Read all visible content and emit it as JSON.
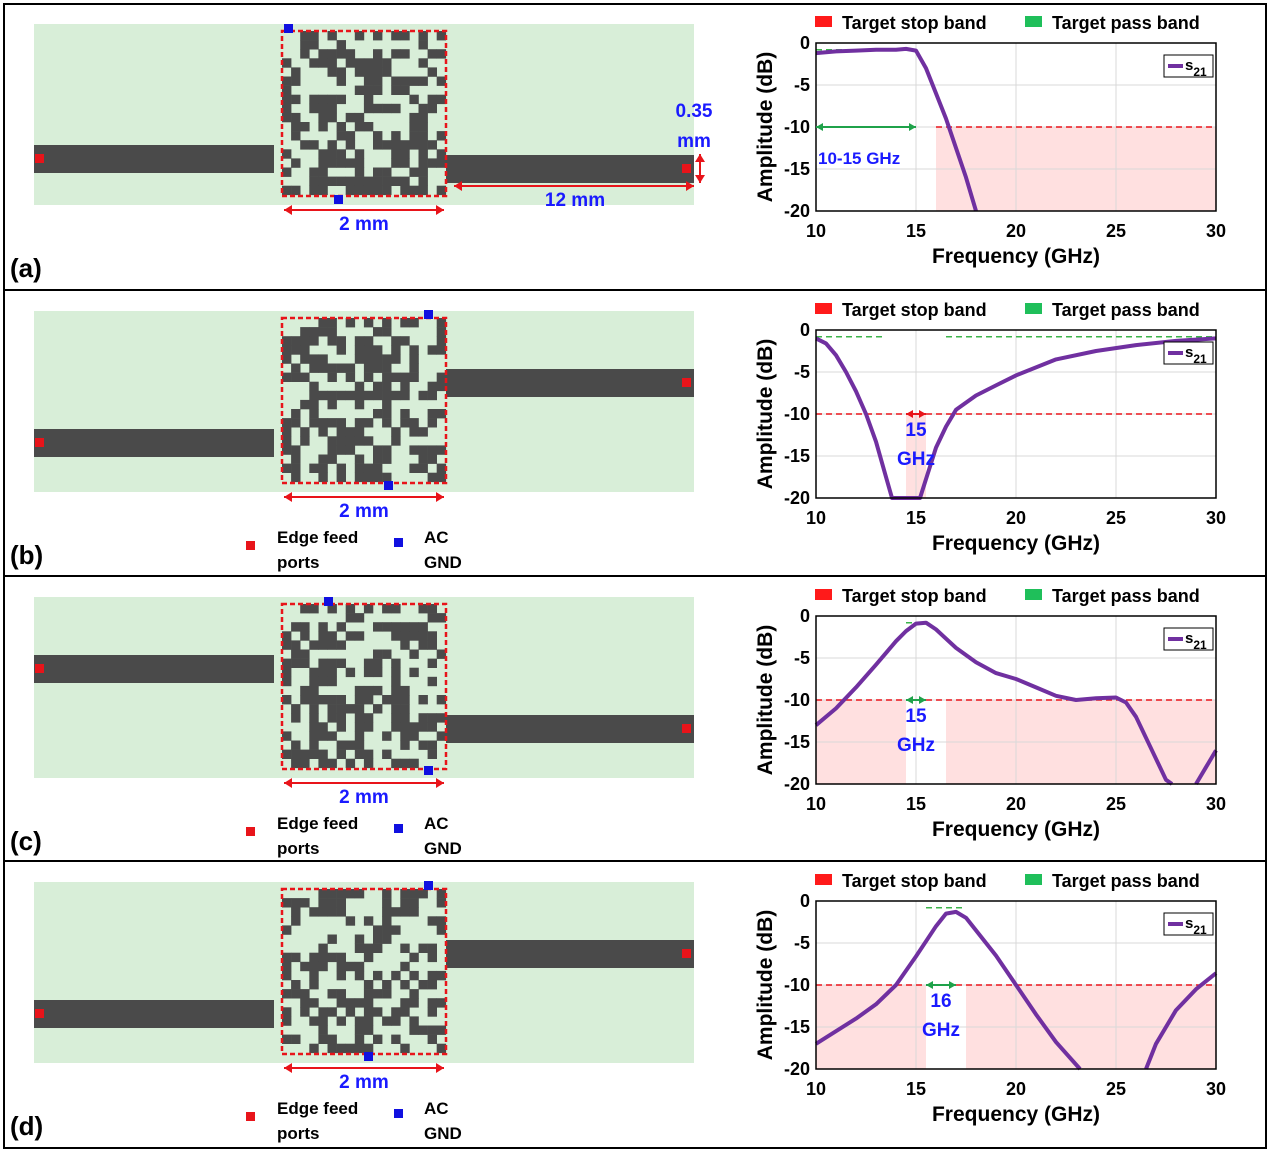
{
  "legend": {
    "stop_label": "Target stop band",
    "pass_label": "Target pass band",
    "stop_color": "#ff1a1a",
    "pass_color": "#1fbf5a"
  },
  "ports_legend": {
    "feed_line1": "Edge feed",
    "feed_line2": "ports",
    "gnd_line1": "AC",
    "gnd_line2": "GND",
    "feed_color": "#e8141a",
    "gnd_color": "#1010e0"
  },
  "colors": {
    "substrate": "#d8eed8",
    "metal": "#4a4a4a",
    "dim": "#e8141a",
    "annotation": "#1a1aff",
    "curve": "#7030a0",
    "stop_fill": "#ffe0e0",
    "pass_line": "#3cb44b"
  },
  "panels": [
    {
      "label": "(a)",
      "dim_2mm": "2 mm",
      "dim_12mm": "12 mm",
      "dim_h1": "0.35",
      "dim_h2": "mm",
      "annot1": "10-15 GHz",
      "annot2": "",
      "show_port_legend": false,
      "left_line": "center",
      "right_line": "center"
    },
    {
      "label": "(b)",
      "dim_2mm": "2 mm",
      "annot1": "15",
      "annot2": "GHz",
      "show_port_legend": true,
      "left_line": "low",
      "right_line": "high"
    },
    {
      "label": "(c)",
      "dim_2mm": "2 mm",
      "annot1": "15",
      "annot2": "GHz",
      "show_port_legend": true,
      "left_line": "high",
      "right_line": "low"
    },
    {
      "label": "(d)",
      "dim_2mm": "2 mm",
      "annot1": "16",
      "annot2": "GHz",
      "show_port_legend": true,
      "left_line": "low",
      "right_line": "high"
    }
  ],
  "chart_data": [
    {
      "type": "line",
      "xlabel": "Frequency (GHz)",
      "ylabel": "Amplitude (dB)",
      "xlim": [
        10,
        30
      ],
      "ylim": [
        -20,
        0
      ],
      "xticks": [
        10,
        15,
        20,
        25,
        30
      ],
      "yticks": [
        0,
        -5,
        -10,
        -15,
        -20
      ],
      "legend_position": "top-right",
      "grid": true,
      "series": [
        {
          "name": "s21",
          "x": [
            10,
            11,
            12,
            13,
            14,
            14.5,
            15,
            15.5,
            16,
            16.5,
            17,
            17.5,
            18
          ],
          "y": [
            -1.2,
            -1,
            -0.9,
            -0.8,
            -0.8,
            -0.7,
            -0.9,
            -3,
            -6,
            -9,
            -12.5,
            -16,
            -20
          ]
        }
      ],
      "stop_bands": [
        [
          16,
          30
        ]
      ],
      "stop_level": -10,
      "pass_bands": [
        [
          10,
          15
        ]
      ],
      "pass_level": -0.8,
      "arrow": [
        10,
        15
      ]
    },
    {
      "type": "line",
      "xlabel": "Frequency (GHz)",
      "ylabel": "Amplitude (dB)",
      "xlim": [
        10,
        30
      ],
      "ylim": [
        -20,
        0
      ],
      "xticks": [
        10,
        15,
        20,
        25,
        30
      ],
      "yticks": [
        0,
        -5,
        -10,
        -15,
        -20
      ],
      "legend_position": "top-right",
      "grid": true,
      "series": [
        {
          "name": "s21",
          "x": [
            10,
            10.5,
            11,
            11.5,
            12,
            12.5,
            13,
            13.5,
            13.8,
            15.2,
            15.6,
            16,
            16.5,
            17,
            18,
            19,
            20,
            22,
            24,
            26,
            28,
            30
          ],
          "y": [
            -1,
            -1.6,
            -3,
            -5,
            -7.3,
            -10,
            -13.3,
            -17.5,
            -20,
            -20,
            -17,
            -14,
            -11.5,
            -9.5,
            -7.8,
            -6.6,
            -5.4,
            -3.5,
            -2.5,
            -1.8,
            -1.3,
            -1
          ]
        }
      ],
      "stop_bands": [
        [
          14.5,
          15.5
        ]
      ],
      "stop_level": -10,
      "pass_bands": [
        [
          10,
          13.5
        ],
        [
          16.5,
          30
        ]
      ],
      "pass_level": -0.8,
      "arrow": [
        14.5,
        15.5
      ]
    },
    {
      "type": "line",
      "xlabel": "Frequency (GHz)",
      "ylabel": "Amplitude (dB)",
      "xlim": [
        10,
        30
      ],
      "ylim": [
        -20,
        0
      ],
      "xticks": [
        10,
        15,
        20,
        25,
        30
      ],
      "yticks": [
        0,
        -5,
        -10,
        -15,
        -20
      ],
      "legend_position": "top-right",
      "grid": true,
      "series": [
        {
          "name": "s21",
          "x": [
            10,
            11,
            12,
            13,
            14,
            14.5,
            15,
            15.5,
            16,
            17,
            18,
            19,
            20,
            21,
            22,
            23,
            24,
            25,
            25.5,
            26,
            26.5,
            27,
            27.5,
            27.8
          ],
          "y": [
            -13,
            -11,
            -8.5,
            -5.8,
            -3,
            -1.8,
            -0.9,
            -0.8,
            -1.6,
            -3.8,
            -5.5,
            -6.8,
            -7.5,
            -8.5,
            -9.5,
            -10,
            -9.8,
            -9.7,
            -10.3,
            -12,
            -14.5,
            -17,
            -19.5,
            -20
          ]
        },
        {
          "name": "",
          "x": [
            29,
            29.5,
            30
          ],
          "y": [
            -20,
            -18,
            -16
          ]
        }
      ],
      "stop_bands": [
        [
          10,
          14.5
        ],
        [
          16.5,
          30
        ]
      ],
      "stop_level": -10,
      "pass_bands": [
        [
          14.5,
          15.5
        ]
      ],
      "pass_level": -0.8,
      "arrow": [
        14.5,
        15.5
      ]
    },
    {
      "type": "line",
      "xlabel": "Frequency (GHz)",
      "ylabel": "Amplitude (dB)",
      "xlim": [
        10,
        30
      ],
      "ylim": [
        -20,
        0
      ],
      "xticks": [
        10,
        15,
        20,
        25,
        30
      ],
      "yticks": [
        0,
        -5,
        -10,
        -15,
        -20
      ],
      "legend_position": "top-right",
      "grid": true,
      "series": [
        {
          "name": "s21",
          "x": [
            10,
            11,
            12,
            13,
            14,
            15,
            15.5,
            16,
            16.5,
            17,
            17.5,
            18,
            19,
            20,
            21,
            22,
            23.2
          ],
          "y": [
            -17,
            -15.5,
            -14,
            -12.3,
            -10,
            -6.6,
            -4.8,
            -3,
            -1.5,
            -1.3,
            -2,
            -3.5,
            -6.5,
            -10,
            -13.5,
            -16.8,
            -20
          ]
        },
        {
          "name": "",
          "x": [
            26.5,
            27,
            28,
            29,
            30
          ],
          "y": [
            -20,
            -17,
            -13,
            -10.5,
            -8.6
          ]
        }
      ],
      "stop_bands": [
        [
          10,
          15.5
        ],
        [
          17.5,
          30
        ]
      ],
      "stop_level": -10,
      "pass_bands": [
        [
          15.5,
          17.5
        ]
      ],
      "pass_level": -0.8,
      "arrow": [
        15.5,
        17
      ]
    }
  ]
}
